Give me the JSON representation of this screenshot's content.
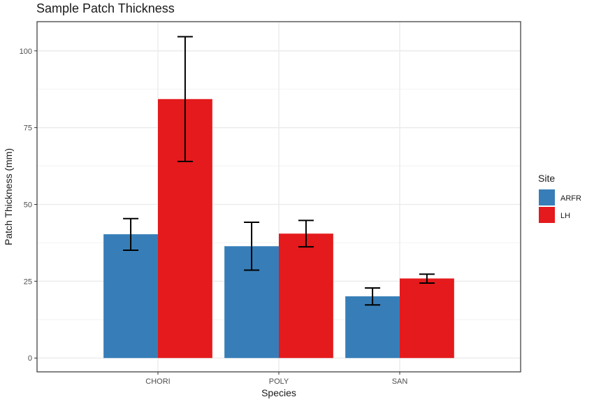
{
  "chart_data": {
    "type": "bar",
    "title": "Sample Patch Thickness",
    "xlabel": "Species",
    "ylabel": "Patch Thickness (mm)",
    "categories": [
      "CHORI",
      "POLY",
      "SAN"
    ],
    "ylim": [
      -4.5,
      109.5
    ],
    "yticks": [
      0,
      25,
      50,
      75,
      100
    ],
    "grid": true,
    "legend_title": "Site",
    "legend_position": "right",
    "series": [
      {
        "name": "ARFR",
        "color": "#377EB8",
        "values": [
          40.3,
          36.4,
          20.1
        ],
        "error_low": [
          35.1,
          28.6,
          17.3
        ],
        "error_high": [
          45.4,
          44.2,
          22.8
        ]
      },
      {
        "name": "LH",
        "color": "#E41A1C",
        "values": [
          84.3,
          40.5,
          25.9
        ],
        "error_low": [
          64.0,
          36.2,
          24.4
        ],
        "error_high": [
          104.6,
          44.8,
          27.3
        ]
      }
    ]
  }
}
